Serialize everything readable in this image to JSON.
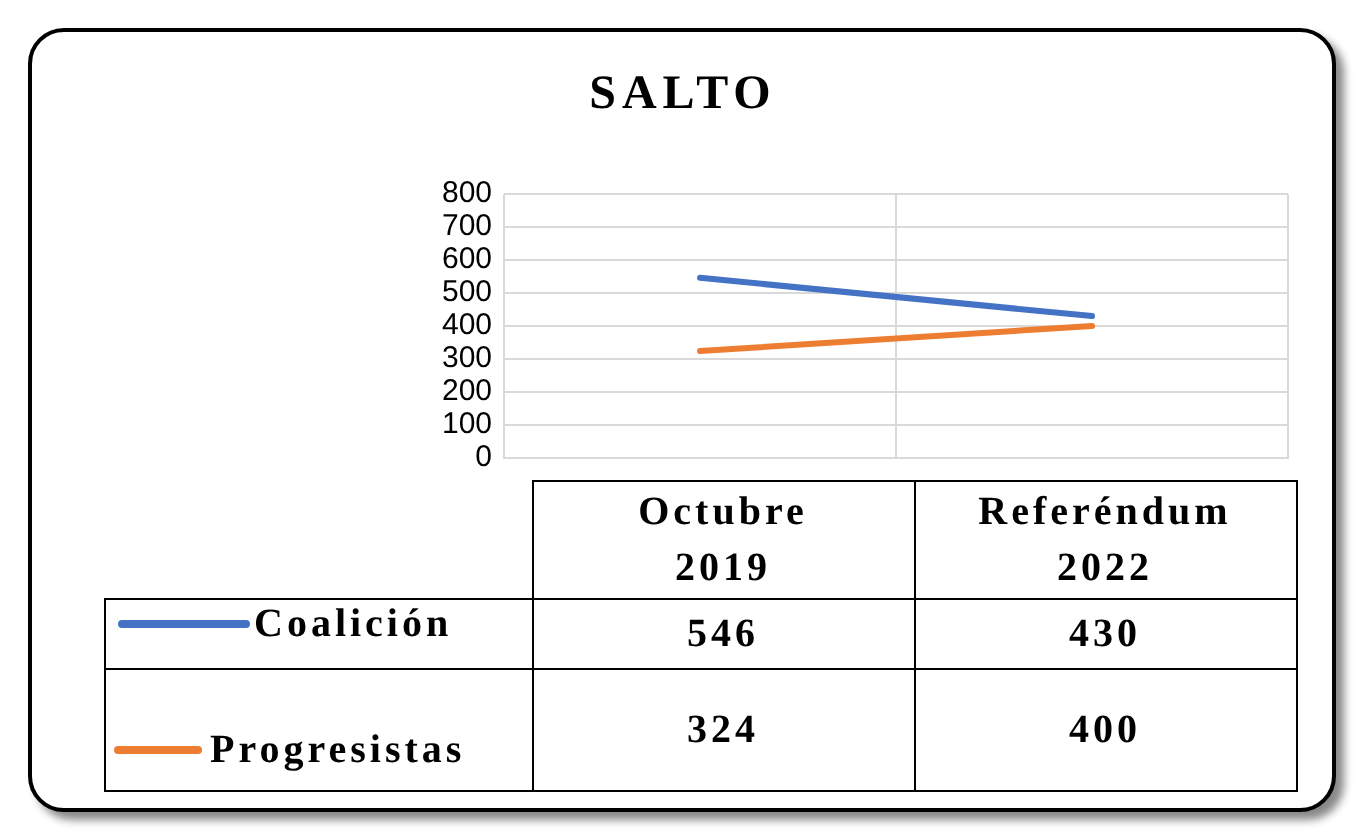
{
  "chart_data": {
    "type": "line",
    "title": "SALTO",
    "categories": [
      "Octubre 2019",
      "Referéndum 2022"
    ],
    "series": [
      {
        "name": "Coalición",
        "color": "#4472c4",
        "values": [
          546,
          430
        ]
      },
      {
        "name": "Progresistas",
        "color": "#ed7d31",
        "values": [
          324,
          400
        ]
      }
    ],
    "ylim": [
      0,
      800
    ],
    "yticks": [
      0,
      100,
      200,
      300,
      400,
      500,
      600,
      700,
      800
    ],
    "grid": true,
    "legend": "bottom",
    "data_labels": true,
    "marker": "none",
    "line_style": "solid"
  }
}
